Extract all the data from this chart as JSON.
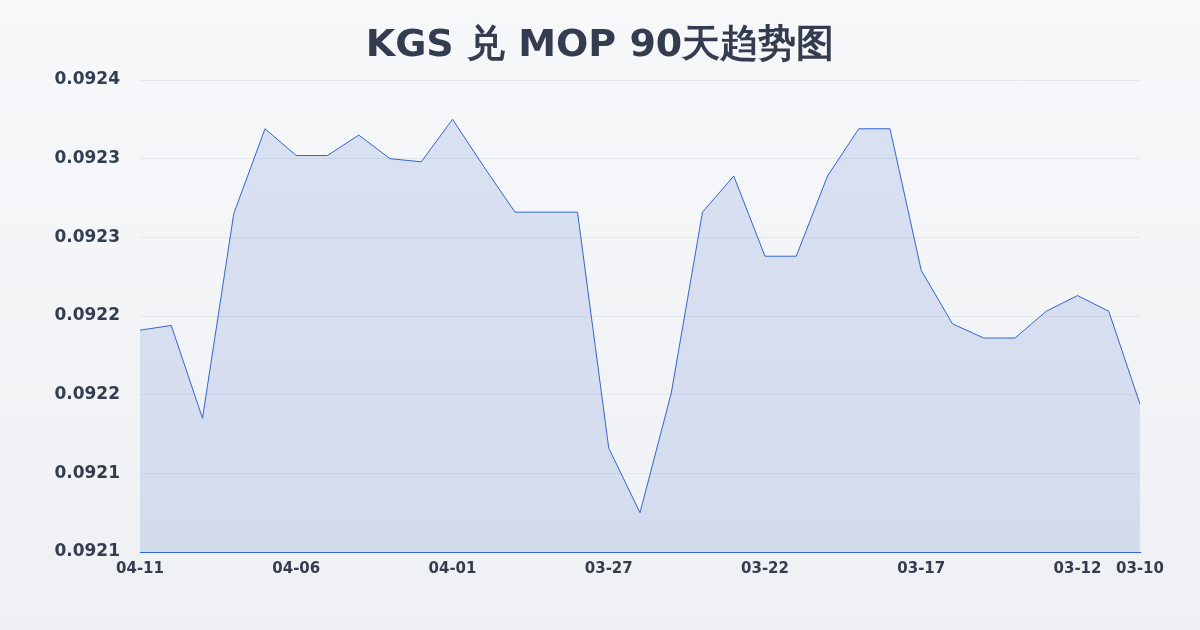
{
  "chart_data": {
    "type": "area",
    "title": "KGS 兑 MOP 90天趋势图",
    "categories": [
      "04-11",
      null,
      null,
      null,
      null,
      "04-06",
      null,
      null,
      null,
      null,
      "04-01",
      null,
      null,
      null,
      null,
      "03-27",
      null,
      null,
      null,
      null,
      "03-22",
      null,
      null,
      null,
      null,
      "03-17",
      null,
      null,
      null,
      null,
      "03-12",
      null,
      "03-10"
    ],
    "series": [
      {
        "color": "#3366cc",
        "values": [
          0.092241,
          0.092244,
          0.092185,
          0.092315,
          0.092369,
          0.092352,
          0.092352,
          0.092365,
          0.09235,
          0.092348,
          0.092375,
          0.092345,
          0.092316,
          0.092316,
          0.092316,
          0.092166,
          0.092125,
          0.092201,
          0.092316,
          0.092339,
          0.092288,
          0.092288,
          0.092339,
          0.092369,
          0.092369,
          0.092279,
          0.092245,
          0.092236,
          0.092236,
          0.092253,
          0.092263,
          0.092253,
          0.092194
        ]
      }
    ],
    "ylim": [
      0.0921,
      0.0924
    ],
    "yticks": [
      {
        "value": 0.0921,
        "label": "0.0921"
      },
      {
        "value": 0.09215,
        "label": "0.0921"
      },
      {
        "value": 0.0922,
        "label": "0.0922"
      },
      {
        "value": 0.09225,
        "label": "0.0922"
      },
      {
        "value": 0.0923,
        "label": "0.0923"
      },
      {
        "value": 0.09235,
        "label": "0.0923"
      },
      {
        "value": 0.0924,
        "label": "0.0924"
      }
    ],
    "grid": "y",
    "legend": false,
    "marker": "none",
    "line_style": "solid"
  }
}
